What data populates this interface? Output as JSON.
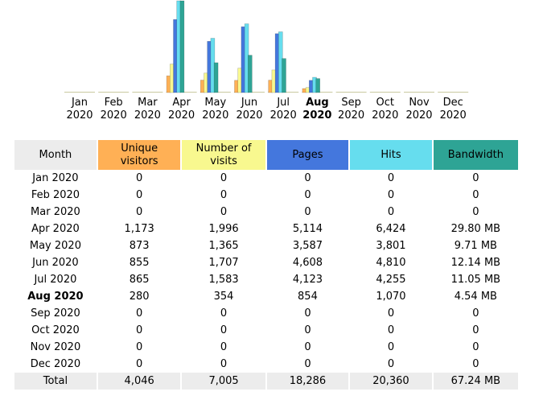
{
  "chart_data": {
    "type": "bar",
    "categories": [
      "Jan",
      "Feb",
      "Mar",
      "Apr",
      "May",
      "Jun",
      "Jul",
      "Aug",
      "Sep",
      "Oct",
      "Nov",
      "Dec"
    ],
    "year": "2020",
    "current_index": 7,
    "series": [
      {
        "name": "Unique visitors",
        "color": "#ffb055",
        "values": [
          0,
          0,
          0,
          1173,
          873,
          855,
          865,
          280,
          0,
          0,
          0,
          0
        ]
      },
      {
        "name": "Number of visits",
        "color": "#f8f88f",
        "values": [
          0,
          0,
          0,
          1996,
          1365,
          1707,
          1583,
          354,
          0,
          0,
          0,
          0
        ]
      },
      {
        "name": "Pages",
        "color": "#4477dd",
        "values": [
          0,
          0,
          0,
          5114,
          3587,
          4608,
          4123,
          854,
          0,
          0,
          0,
          0
        ]
      },
      {
        "name": "Hits",
        "color": "#66ddee",
        "values": [
          0,
          0,
          0,
          6424,
          3801,
          4810,
          4255,
          1070,
          0,
          0,
          0,
          0
        ]
      },
      {
        "name": "Bandwidth",
        "color": "#2ea495",
        "unit": "MB",
        "values": [
          0,
          0,
          0,
          29.8,
          9.71,
          12.14,
          11.05,
          4.54,
          0,
          0,
          0,
          0
        ]
      }
    ]
  },
  "table": {
    "headers": {
      "month": "Month",
      "unique_visitors": "Unique\nvisitors",
      "visits": "Number of\nvisits",
      "pages": "Pages",
      "hits": "Hits",
      "bandwidth": "Bandwidth"
    },
    "rows": [
      {
        "month": "Jan 2020",
        "uv": "0",
        "nv": "0",
        "pg": "0",
        "ht": "0",
        "bw": "0"
      },
      {
        "month": "Feb 2020",
        "uv": "0",
        "nv": "0",
        "pg": "0",
        "ht": "0",
        "bw": "0"
      },
      {
        "month": "Mar 2020",
        "uv": "0",
        "nv": "0",
        "pg": "0",
        "ht": "0",
        "bw": "0"
      },
      {
        "month": "Apr 2020",
        "uv": "1,173",
        "nv": "1,996",
        "pg": "5,114",
        "ht": "6,424",
        "bw": "29.80 MB"
      },
      {
        "month": "May 2020",
        "uv": "873",
        "nv": "1,365",
        "pg": "3,587",
        "ht": "3,801",
        "bw": "9.71 MB"
      },
      {
        "month": "Jun 2020",
        "uv": "855",
        "nv": "1,707",
        "pg": "4,608",
        "ht": "4,810",
        "bw": "12.14 MB"
      },
      {
        "month": "Jul 2020",
        "uv": "865",
        "nv": "1,583",
        "pg": "4,123",
        "ht": "4,255",
        "bw": "11.05 MB"
      },
      {
        "month": "Aug 2020",
        "uv": "280",
        "nv": "354",
        "pg": "854",
        "ht": "1,070",
        "bw": "4.54 MB",
        "current": true
      },
      {
        "month": "Sep 2020",
        "uv": "0",
        "nv": "0",
        "pg": "0",
        "ht": "0",
        "bw": "0"
      },
      {
        "month": "Oct 2020",
        "uv": "0",
        "nv": "0",
        "pg": "0",
        "ht": "0",
        "bw": "0"
      },
      {
        "month": "Nov 2020",
        "uv": "0",
        "nv": "0",
        "pg": "0",
        "ht": "0",
        "bw": "0"
      },
      {
        "month": "Dec 2020",
        "uv": "0",
        "nv": "0",
        "pg": "0",
        "ht": "0",
        "bw": "0"
      }
    ],
    "total": {
      "label": "Total",
      "uv": "4,046",
      "nv": "7,005",
      "pg": "18,286",
      "ht": "20,360",
      "bw": "67.24 MB"
    }
  }
}
